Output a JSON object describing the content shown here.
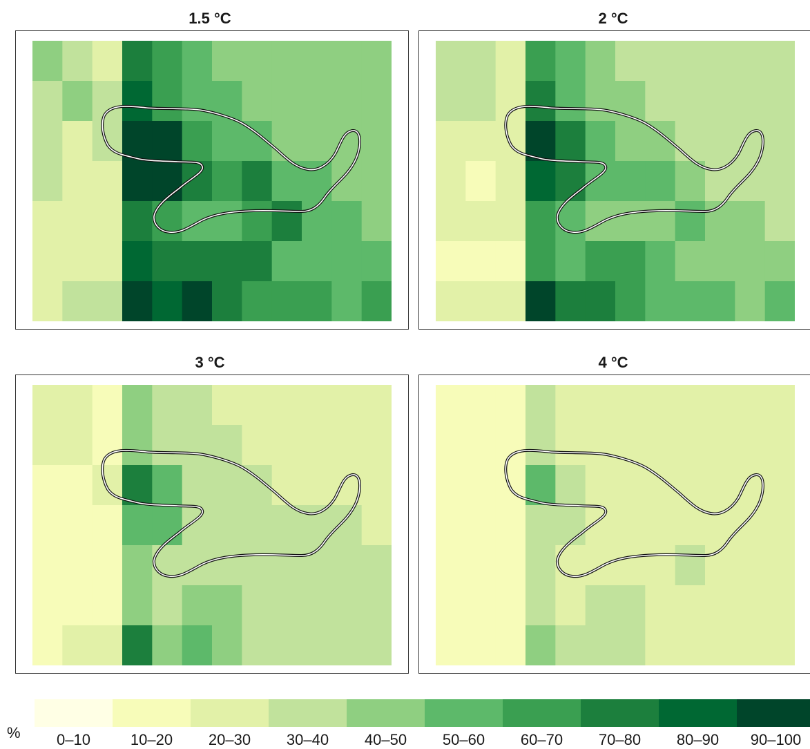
{
  "chart_data": {
    "type": "heatmap",
    "unit": "%",
    "grid_size": {
      "rows": 7,
      "cols": 12
    },
    "legend": {
      "bins": [
        "0–10",
        "10–20",
        "20–30",
        "30–40",
        "40–50",
        "50–60",
        "60–70",
        "70–80",
        "80–90",
        "90–100"
      ],
      "colors": [
        "#ffffe5",
        "#f7fcb9",
        "#e2f1a8",
        "#c1e29c",
        "#8fcf81",
        "#5db96a",
        "#3a9f51",
        "#1c7f3d",
        "#006833",
        "#00452a"
      ]
    },
    "panels": [
      {
        "title": "1.5 °C",
        "bins": [
          [
            4,
            3,
            2,
            7,
            6,
            5,
            4,
            4,
            4,
            4,
            4,
            4
          ],
          [
            3,
            4,
            3,
            8,
            6,
            5,
            5,
            4,
            4,
            4,
            4,
            4
          ],
          [
            3,
            2,
            3,
            9,
            9,
            6,
            5,
            5,
            4,
            4,
            4,
            4
          ],
          [
            3,
            2,
            2,
            9,
            9,
            7,
            6,
            7,
            5,
            5,
            4,
            4
          ],
          [
            2,
            2,
            2,
            7,
            6,
            5,
            5,
            6,
            7,
            5,
            5,
            4
          ],
          [
            2,
            2,
            2,
            8,
            7,
            7,
            7,
            7,
            5,
            5,
            5,
            5
          ],
          [
            2,
            3,
            3,
            9,
            8,
            9,
            7,
            6,
            6,
            6,
            5,
            6
          ]
        ]
      },
      {
        "title": "2 °C",
        "bins": [
          [
            3,
            3,
            2,
            6,
            5,
            4,
            3,
            3,
            3,
            3,
            3,
            3
          ],
          [
            3,
            3,
            2,
            7,
            5,
            4,
            4,
            3,
            3,
            3,
            3,
            3
          ],
          [
            2,
            2,
            2,
            9,
            7,
            5,
            4,
            4,
            3,
            3,
            3,
            3
          ],
          [
            2,
            1,
            2,
            8,
            7,
            5,
            5,
            5,
            4,
            3,
            3,
            3
          ],
          [
            2,
            2,
            2,
            6,
            5,
            4,
            4,
            4,
            5,
            4,
            4,
            3
          ],
          [
            1,
            1,
            1,
            6,
            5,
            6,
            6,
            5,
            4,
            4,
            4,
            4
          ],
          [
            2,
            2,
            2,
            9,
            7,
            7,
            6,
            5,
            5,
            5,
            4,
            5
          ]
        ]
      },
      {
        "title": "3 °C",
        "bins": [
          [
            2,
            2,
            1,
            4,
            3,
            3,
            2,
            2,
            2,
            2,
            2,
            2
          ],
          [
            2,
            2,
            1,
            4,
            3,
            3,
            3,
            2,
            2,
            2,
            2,
            2
          ],
          [
            1,
            1,
            2,
            7,
            5,
            3,
            3,
            3,
            2,
            2,
            2,
            2
          ],
          [
            1,
            1,
            1,
            5,
            5,
            3,
            3,
            3,
            3,
            3,
            3,
            2
          ],
          [
            1,
            1,
            1,
            4,
            3,
            3,
            3,
            3,
            3,
            3,
            3,
            3
          ],
          [
            1,
            1,
            1,
            4,
            3,
            4,
            4,
            3,
            3,
            3,
            3,
            3
          ],
          [
            1,
            2,
            2,
            7,
            4,
            5,
            4,
            3,
            3,
            3,
            3,
            3
          ]
        ]
      },
      {
        "title": "4 °C",
        "bins": [
          [
            1,
            1,
            1,
            3,
            2,
            2,
            2,
            2,
            2,
            2,
            2,
            2
          ],
          [
            1,
            1,
            1,
            3,
            2,
            2,
            2,
            2,
            2,
            2,
            2,
            2
          ],
          [
            1,
            1,
            1,
            5,
            3,
            2,
            2,
            2,
            2,
            2,
            2,
            2
          ],
          [
            1,
            1,
            1,
            3,
            3,
            2,
            2,
            2,
            2,
            2,
            2,
            2
          ],
          [
            1,
            1,
            1,
            3,
            2,
            2,
            2,
            2,
            3,
            2,
            2,
            2
          ],
          [
            1,
            1,
            1,
            3,
            2,
            3,
            3,
            2,
            2,
            2,
            2,
            2
          ],
          [
            1,
            1,
            1,
            4,
            3,
            3,
            3,
            2,
            2,
            2,
            2,
            2
          ]
        ]
      }
    ]
  }
}
